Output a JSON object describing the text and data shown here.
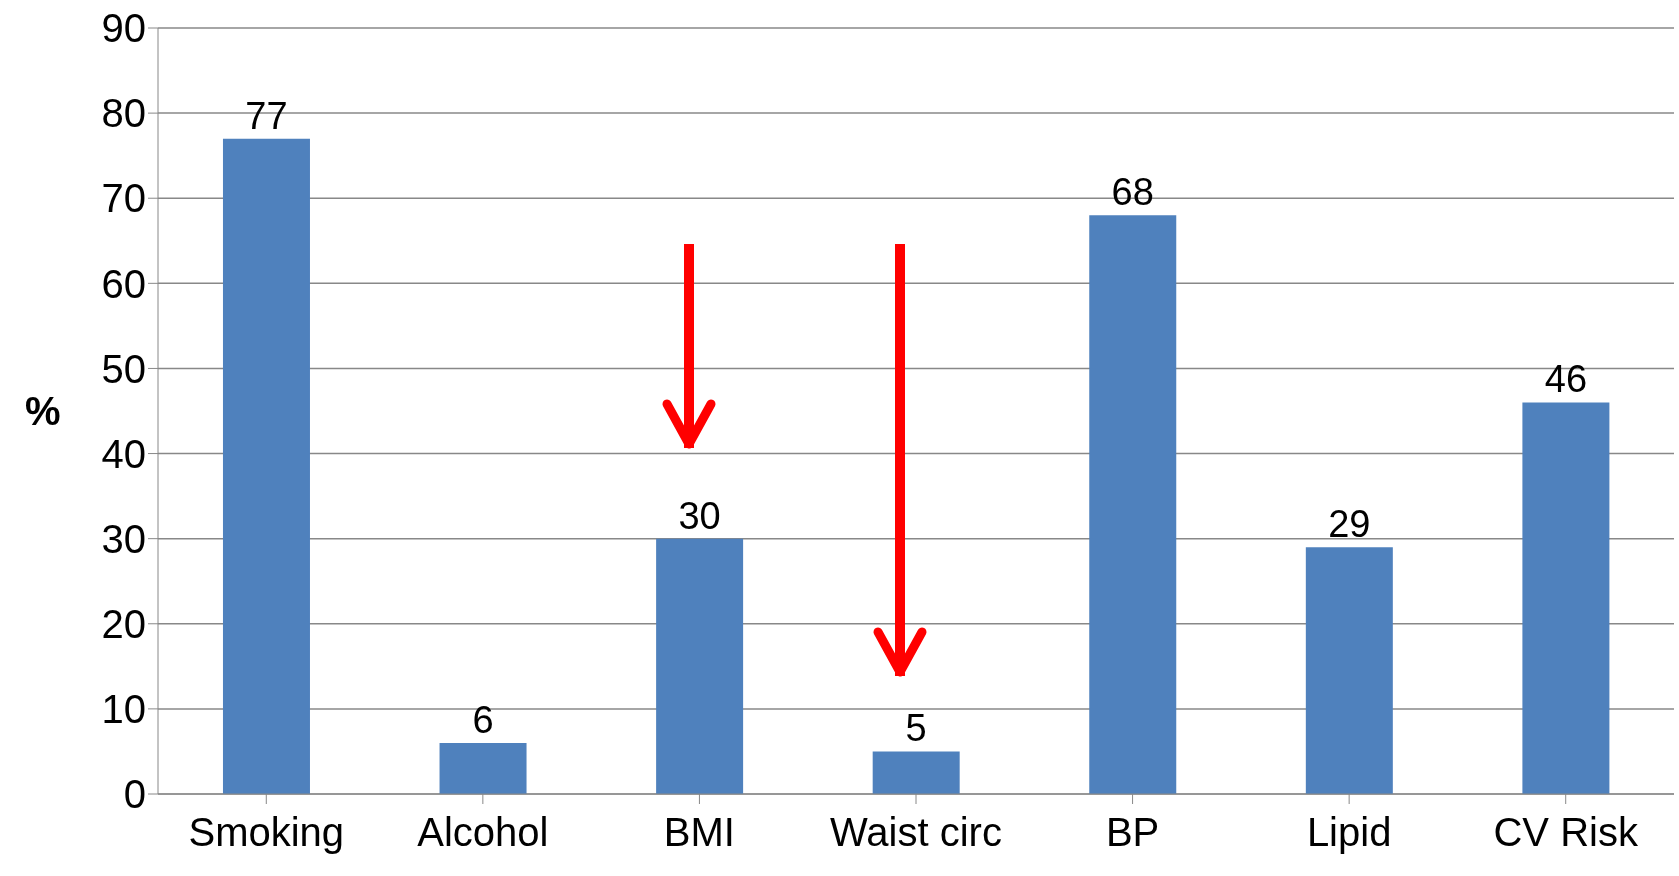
{
  "chart_data": {
    "type": "bar",
    "ylabel": "%",
    "categories": [
      "Smoking",
      "Alcohol",
      "BMI",
      "Waist circ",
      "BP",
      "Lipid",
      "CV Risk"
    ],
    "values": [
      77,
      6,
      30,
      5,
      68,
      29,
      46
    ],
    "color": "#4f81bd",
    "ylim": [
      0,
      90
    ],
    "yticks": [
      0,
      10,
      20,
      30,
      40,
      50,
      60,
      70,
      80,
      90
    ],
    "grid": "y",
    "data_labels": true
  }
}
